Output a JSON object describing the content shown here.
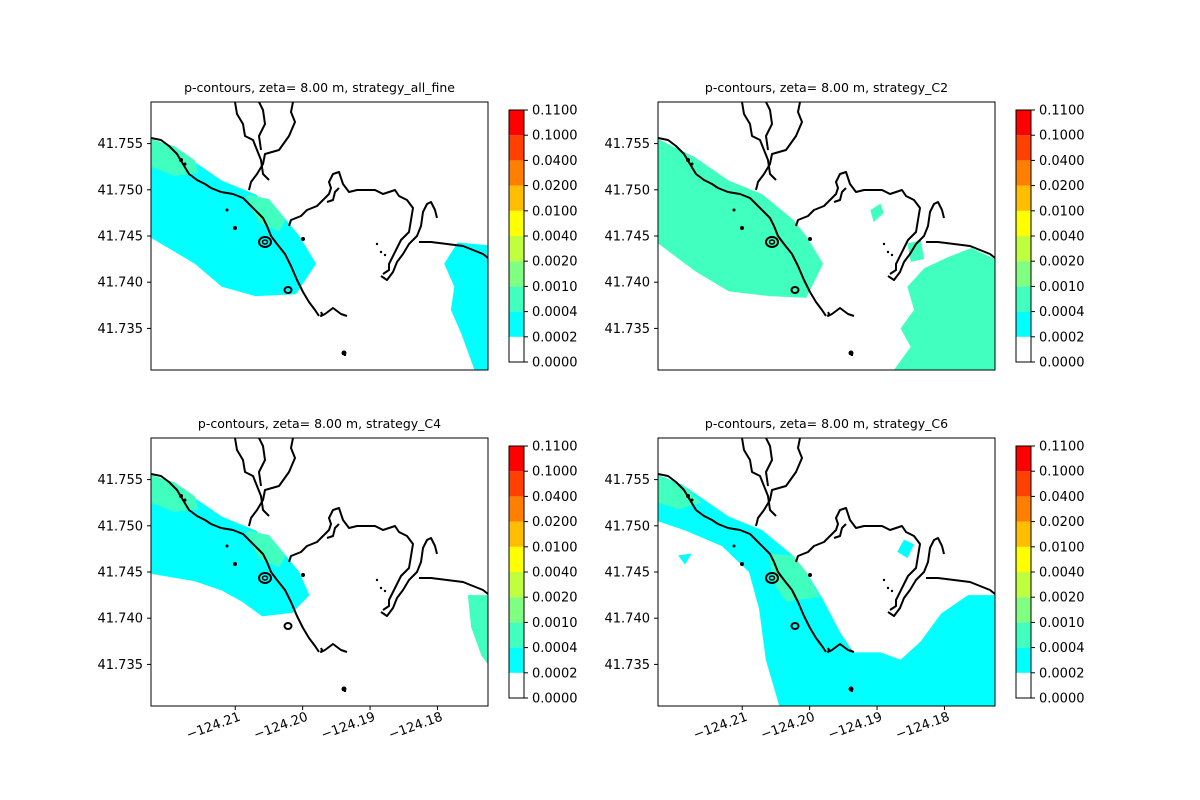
{
  "chart_data": {
    "type": "heatmap",
    "colorbar": {
      "levels": [
        0.0,
        0.0002,
        0.0004,
        0.001,
        0.002,
        0.004,
        0.01,
        0.02,
        0.04,
        0.1,
        0.11
      ],
      "tick_labels": [
        "0.0000",
        "0.0002",
        "0.0004",
        "0.0010",
        "0.0020",
        "0.0040",
        "0.0100",
        "0.0200",
        "0.0400",
        "0.1000",
        "0.1100"
      ],
      "colors": [
        "#ffffff",
        "#00ffff",
        "#40ffbf",
        "#80ff80",
        "#bfff40",
        "#ffff00",
        "#ffbf00",
        "#ff8000",
        "#ff4000",
        "#ff0000"
      ]
    },
    "x_range": [
      -124.2225,
      -124.1725
    ],
    "y_range": [
      41.7305,
      41.7595
    ],
    "x_ticks": [
      -124.21,
      -124.2,
      -124.19,
      -124.18
    ],
    "x_tick_labels": [
      "−124.21",
      "−124.20",
      "−124.19",
      "−124.18"
    ],
    "y_ticks": [
      41.735,
      41.74,
      41.745,
      41.75,
      41.755
    ],
    "y_tick_labels": [
      "41.735",
      "41.740",
      "41.745",
      "41.750",
      "41.755"
    ],
    "panels": [
      {
        "title": "p-contours, zeta= 8.00 m, strategy_all_fine",
        "regions": [
          {
            "level_index": 1,
            "polygon": [
              [
                -124.2225,
                41.7555
              ],
              [
                -124.219,
                41.7545
              ],
              [
                -124.212,
                41.751
              ],
              [
                -124.207,
                41.7495
              ],
              [
                -124.2025,
                41.7468
              ],
              [
                -124.2005,
                41.745
              ],
              [
                -124.198,
                41.742
              ],
              [
                -124.201,
                41.7387
              ],
              [
                -124.207,
                41.7385
              ],
              [
                -124.212,
                41.7395
              ],
              [
                -124.216,
                41.742
              ],
              [
                -124.2225,
                41.7448
              ]
            ]
          },
          {
            "level_index": 2,
            "polygon": [
              [
                -124.2225,
                41.7555
              ],
              [
                -124.219,
                41.7547
              ],
              [
                -124.216,
                41.7532
              ],
              [
                -124.2155,
                41.7518
              ],
              [
                -124.219,
                41.7515
              ],
              [
                -124.2225,
                41.7525
              ]
            ]
          },
          {
            "level_index": 2,
            "polygon": [
              [
                -124.2085,
                41.7495
              ],
              [
                -124.2065,
                41.7465
              ],
              [
                -124.2035,
                41.7455
              ],
              [
                -124.2025,
                41.7468
              ],
              [
                -124.205,
                41.749
              ]
            ]
          },
          {
            "level_index": 1,
            "polygon": [
              [
                -124.1725,
                41.744
              ],
              [
                -124.177,
                41.7443
              ],
              [
                -124.179,
                41.742
              ],
              [
                -124.1775,
                41.7395
              ],
              [
                -124.178,
                41.737
              ],
              [
                -124.1765,
                41.7345
              ],
              [
                -124.1745,
                41.7305
              ],
              [
                -124.1725,
                41.7305
              ]
            ]
          }
        ]
      },
      {
        "title": "p-contours, zeta= 8.00 m, strategy_C2",
        "regions": [
          {
            "level_index": 2,
            "polygon": [
              [
                -124.2225,
                41.7555
              ],
              [
                -124.217,
                41.7535
              ],
              [
                -124.212,
                41.751
              ],
              [
                -124.207,
                41.7495
              ],
              [
                -124.2025,
                41.7468
              ],
              [
                -124.2005,
                41.745
              ],
              [
                -124.198,
                41.742
              ],
              [
                -124.2005,
                41.7383
              ],
              [
                -124.206,
                41.7385
              ],
              [
                -124.212,
                41.739
              ],
              [
                -124.217,
                41.7412
              ],
              [
                -124.2225,
                41.7442
              ]
            ]
          },
          {
            "level_index": 2,
            "polygon": [
              [
                -124.1725,
                41.7425
              ],
              [
                -124.176,
                41.7437
              ],
              [
                -124.1795,
                41.7427
              ],
              [
                -124.183,
                41.7415
              ],
              [
                -124.1855,
                41.7395
              ],
              [
                -124.1845,
                41.737
              ],
              [
                -124.1865,
                41.735
              ],
              [
                -124.185,
                41.733
              ],
              [
                -124.1875,
                41.7305
              ],
              [
                -124.1725,
                41.7305
              ]
            ]
          },
          {
            "level_index": 2,
            "polygon": [
              [
                -124.1905,
                41.7465
              ],
              [
                -124.189,
                41.7475
              ],
              [
                -124.1895,
                41.7485
              ],
              [
                -124.191,
                41.7478
              ]
            ]
          },
          {
            "level_index": 2,
            "polygon": [
              [
                -124.1855,
                41.7442
              ],
              [
                -124.1835,
                41.7445
              ],
              [
                -124.183,
                41.7425
              ],
              [
                -124.185,
                41.7422
              ]
            ]
          }
        ]
      },
      {
        "title": "p-contours, zeta= 8.00 m, strategy_C4",
        "regions": [
          {
            "level_index": 1,
            "polygon": [
              [
                -124.2225,
                41.7555
              ],
              [
                -124.219,
                41.7545
              ],
              [
                -124.212,
                41.751
              ],
              [
                -124.207,
                41.7495
              ],
              [
                -124.2025,
                41.7468
              ],
              [
                -124.2005,
                41.745
              ],
              [
                -124.199,
                41.7425
              ],
              [
                -124.2015,
                41.7406
              ],
              [
                -124.206,
                41.7402
              ],
              [
                -124.209,
                41.7418
              ],
              [
                -124.212,
                41.743
              ],
              [
                -124.216,
                41.744
              ],
              [
                -124.2225,
                41.7448
              ]
            ]
          },
          {
            "level_index": 2,
            "polygon": [
              [
                -124.2225,
                41.7555
              ],
              [
                -124.219,
                41.7547
              ],
              [
                -124.216,
                41.7532
              ],
              [
                -124.2155,
                41.7518
              ],
              [
                -124.219,
                41.7515
              ],
              [
                -124.2225,
                41.7525
              ]
            ]
          },
          {
            "level_index": 2,
            "polygon": [
              [
                -124.2085,
                41.7495
              ],
              [
                -124.2065,
                41.7465
              ],
              [
                -124.2035,
                41.7455
              ],
              [
                -124.2025,
                41.7468
              ],
              [
                -124.205,
                41.749
              ]
            ]
          },
          {
            "level_index": 2,
            "polygon": [
              [
                -124.1725,
                41.7425
              ],
              [
                -124.1755,
                41.7425
              ],
              [
                -124.175,
                41.739
              ],
              [
                -124.1735,
                41.736
              ],
              [
                -124.1725,
                41.735
              ]
            ]
          }
        ]
      },
      {
        "title": "p-contours, zeta= 8.00 m, strategy_C6",
        "regions": [
          {
            "level_index": 1,
            "polygon": [
              [
                -124.2225,
                41.7555
              ],
              [
                -124.219,
                41.7545
              ],
              [
                -124.212,
                41.751
              ],
              [
                -124.207,
                41.7495
              ],
              [
                -124.2025,
                41.7468
              ],
              [
                -124.2005,
                41.745
              ],
              [
                -124.198,
                41.742
              ],
              [
                -124.1955,
                41.7385
              ],
              [
                -124.1935,
                41.7363
              ],
              [
                -124.1895,
                41.7363
              ],
              [
                -124.1865,
                41.7355
              ],
              [
                -124.1835,
                41.7375
              ],
              [
                -124.1805,
                41.7405
              ],
              [
                -124.1765,
                41.7425
              ],
              [
                -124.1725,
                41.7425
              ],
              [
                -124.1725,
                41.7305
              ],
              [
                -124.2045,
                41.7305
              ],
              [
                -124.2065,
                41.7355
              ],
              [
                -124.2075,
                41.741
              ],
              [
                -124.209,
                41.745
              ],
              [
                -124.213,
                41.7478
              ],
              [
                -124.2185,
                41.7495
              ],
              [
                -124.2225,
                41.7505
              ]
            ]
          },
          {
            "level_index": 2,
            "polygon": [
              [
                -124.2225,
                41.7555
              ],
              [
                -124.2185,
                41.7542
              ],
              [
                -124.216,
                41.7525
              ],
              [
                -124.2195,
                41.7518
              ],
              [
                -124.2225,
                41.7525
              ]
            ]
          },
          {
            "level_index": 2,
            "polygon": [
              [
                -124.206,
                41.747
              ],
              [
                -124.2025,
                41.7468
              ],
              [
                -124.2005,
                41.745
              ],
              [
                -124.1985,
                41.7423
              ],
              [
                -124.2035,
                41.7418
              ],
              [
                -124.2055,
                41.744
              ]
            ]
          },
          {
            "level_index": 1,
            "polygon": [
              [
                -124.186,
                41.7485
              ],
              [
                -124.1845,
                41.748
              ],
              [
                -124.1855,
                41.7465
              ],
              [
                -124.187,
                41.7472
              ]
            ]
          },
          {
            "level_index": 1,
            "polygon": [
              [
                -124.2195,
                41.7468
              ],
              [
                -124.2175,
                41.747
              ],
              [
                -124.2185,
                41.7458
              ]
            ]
          }
        ]
      }
    ]
  }
}
